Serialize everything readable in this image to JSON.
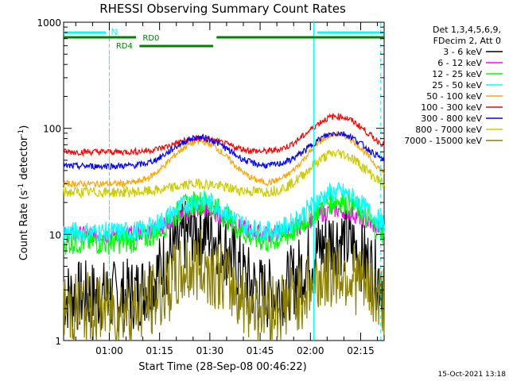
{
  "chart_data": {
    "type": "line",
    "title": "RHESSI Observing Summary Count Rates",
    "xlabel": "Start Time (28-Sep-08 00:46:22)",
    "ylabel_main": "Count Rate (s",
    "ylabel_sup1": "-1",
    "ylabel_mid": " detector",
    "ylabel_sup2": "-1",
    "ylabel_end": ")",
    "yscale": "log",
    "ylim": [
      1,
      1000
    ],
    "y_ticks": [
      {
        "value": 1,
        "label": "1"
      },
      {
        "value": 10,
        "label": "10"
      },
      {
        "value": 100,
        "label": "100"
      },
      {
        "value": 1000,
        "label": "1000"
      }
    ],
    "xlim_minutes": [
      46.37,
      142.0
    ],
    "x_ticks": [
      {
        "minute": 60,
        "label": "01:00"
      },
      {
        "minute": 75,
        "label": "01:15"
      },
      {
        "minute": 90,
        "label": "01:30"
      },
      {
        "minute": 105,
        "label": "01:45"
      },
      {
        "minute": 120,
        "label": "02:00"
      },
      {
        "minute": 135,
        "label": "02:15"
      }
    ],
    "legend_header": [
      "Det 1,3,4,5,6,9,",
      "FDecim 2, Att 0"
    ],
    "series": [
      {
        "name": "3 - 6 keV",
        "color": "#000000",
        "base": 2.6,
        "peak1": 11,
        "peak2": 9,
        "noise": 0.35
      },
      {
        "name": "6 - 12 keV",
        "color": "#ff00ff",
        "base": 10,
        "peak1": 17,
        "peak2": 17,
        "noise": 0.08
      },
      {
        "name": "12 - 25 keV",
        "color": "#00ff00",
        "base": 8.5,
        "peak1": 20,
        "peak2": 21,
        "noise": 0.12
      },
      {
        "name": "25 - 50 keV",
        "color": "#00ffff",
        "base": 10.5,
        "peak1": 21,
        "peak2": 25,
        "noise": 0.1
      },
      {
        "name": "50 - 100 keV",
        "color": "#ffa500",
        "base": 30,
        "peak1": 75,
        "peak2": 88,
        "noise": 0.03
      },
      {
        "name": "100 - 300 keV",
        "color": "#ff0000",
        "base": 60,
        "peak1": 80,
        "peak2": 130,
        "noise": 0.03
      },
      {
        "name": "300 - 800 keV",
        "color": "#0000ff",
        "base": 44,
        "peak1": 82,
        "peak2": 90,
        "noise": 0.03
      },
      {
        "name": "800 - 7000 keV",
        "color": "#cccc00",
        "base": 25,
        "peak1": 30,
        "peak2": 58,
        "noise": 0.05
      },
      {
        "name": "7000 - 15000 keV",
        "color": "#8b8000",
        "base": 2,
        "peak1": 5,
        "peak2": 4.5,
        "noise": 0.35
      }
    ],
    "night_intervals_minutes": [
      [
        46.37,
        60.0
      ],
      [
        121.0,
        142.0
      ]
    ],
    "saa_markers_minutes": [
      60.0,
      121.0,
      141.0
    ],
    "flag_bars": [
      {
        "label": "N",
        "color": "#00ffff"
      },
      {
        "label": "RD0",
        "color": "#008000"
      },
      {
        "label": "RD4",
        "color": "#008000"
      }
    ],
    "timestamp": "15-Oct-2021 13:18"
  }
}
